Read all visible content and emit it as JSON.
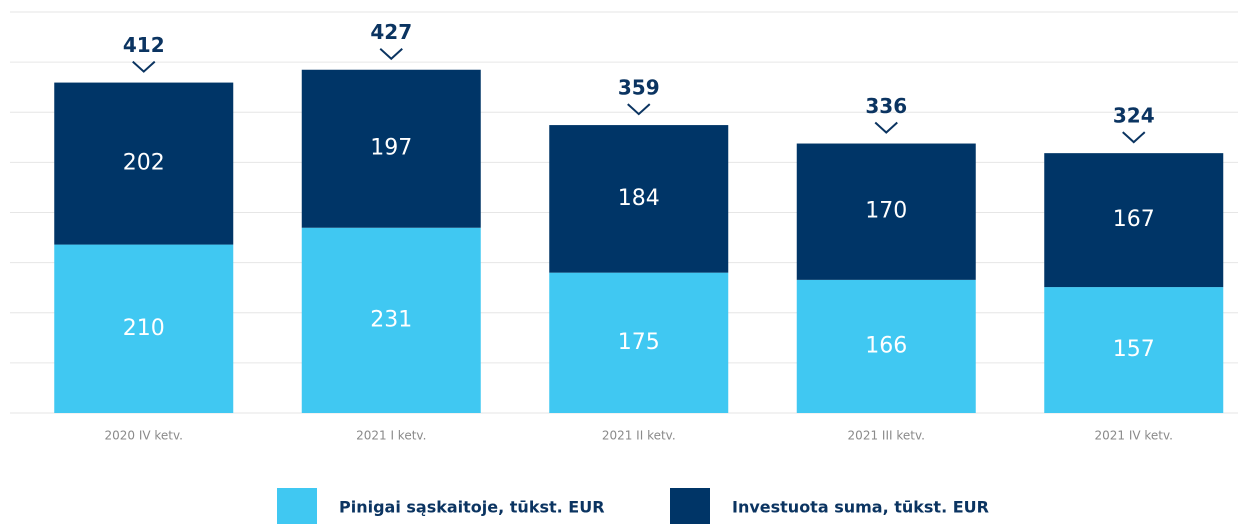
{
  "chart_data": {
    "type": "stacked_bar",
    "categories": [
      "2020 IV ketv.",
      "2021 I ketv.",
      "2021 II ketv.",
      "2021 III ketv.",
      "2021 IV ketv."
    ],
    "series": [
      {
        "name": "Pinigai sąskaitoje, tūkst. EUR",
        "color": "#40c8f2",
        "values": [
          210,
          231,
          175,
          166,
          157
        ]
      },
      {
        "name": "Investuota suma, tūkst. EUR",
        "color": "#003567",
        "values": [
          202,
          197,
          184,
          170,
          167
        ]
      }
    ],
    "totals": [
      412,
      427,
      359,
      336,
      324
    ],
    "ylim": [
      0,
      500
    ],
    "yticks": [
      0,
      62.5,
      125,
      187.5,
      250,
      312.5,
      375,
      437.5,
      500
    ],
    "ytick_labels": false,
    "grid": true
  }
}
